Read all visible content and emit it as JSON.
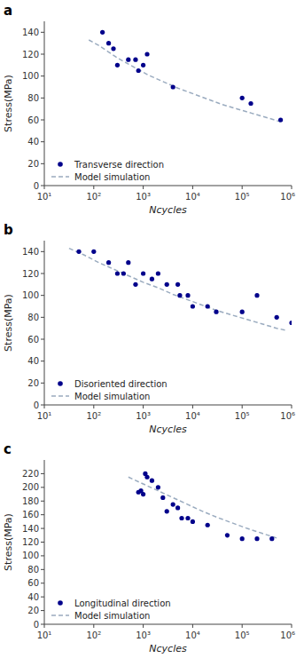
{
  "chart_data": [
    {
      "type": "scatter",
      "title": "a",
      "xlabel": "Ncycles",
      "ylabel": "Stress(MPa)",
      "log": "x",
      "grid": false,
      "legend": "lower left",
      "xlim": [
        10,
        1000000
      ],
      "xticks": [
        {
          "value": 10,
          "label": "10¹"
        },
        {
          "value": 100,
          "label": "10²"
        },
        {
          "value": 1000,
          "label": "10³"
        },
        {
          "value": 10000,
          "label": "10⁴"
        },
        {
          "value": 100000,
          "label": "10⁵"
        },
        {
          "value": 1000000,
          "label": "10⁶"
        }
      ],
      "ylim": [
        0,
        150
      ],
      "yticks": [
        0,
        20,
        40,
        60,
        80,
        100,
        120,
        140
      ],
      "series": [
        {
          "name": "Transverse direction",
          "type": "scatter",
          "marker": "circle",
          "color": "#00008B",
          "x": [
            150,
            200,
            250,
            300,
            500,
            700,
            800,
            1000,
            1200,
            4000,
            100000,
            150000,
            600000
          ],
          "values": [
            140,
            130,
            125,
            110,
            115,
            115,
            105,
            110,
            120,
            90,
            80,
            75,
            60
          ]
        },
        {
          "name": "Model simulation",
          "type": "line",
          "line_style": "dashed",
          "color": "#9aabbf",
          "x": [
            79.43282347242815,
            125.89254117941672,
            199.52623149688796,
            316.22776601683796,
            501.18723362727224,
            794.3282347242815,
            1258.9254117941675,
            2511.886431509582,
            5011.872336272725,
            10000,
            19952.62314968883,
            39810.71705534973,
            79432.82347242814,
            158489.3192461114,
            316227.7660168379,
            630957.3444801943
          ],
          "values": [
            133,
            128,
            122,
            116,
            111,
            106,
            101,
            95,
            89,
            84,
            79,
            74,
            70,
            66,
            62,
            58
          ]
        }
      ]
    },
    {
      "type": "scatter",
      "title": "b",
      "xlabel": "Ncycles",
      "ylabel": "Stress(MPa)",
      "log": "x",
      "grid": false,
      "legend": "lower left",
      "xlim": [
        10,
        1000000
      ],
      "xticks": [
        {
          "value": 10,
          "label": "10¹"
        },
        {
          "value": 100,
          "label": "10²"
        },
        {
          "value": 1000,
          "label": "10³"
        },
        {
          "value": 10000,
          "label": "10⁴"
        },
        {
          "value": 100000,
          "label": "10⁵"
        },
        {
          "value": 1000000,
          "label": "10⁶"
        }
      ],
      "ylim": [
        0,
        150
      ],
      "yticks": [
        0,
        20,
        40,
        60,
        80,
        100,
        120,
        140
      ],
      "series": [
        {
          "name": "Disoriented direction",
          "type": "scatter",
          "marker": "circle",
          "color": "#00008B",
          "x": [
            50,
            100,
            200,
            300,
            400,
            500,
            700,
            1000,
            1500,
            2000,
            3000,
            5000,
            5500,
            8000,
            10000,
            20000,
            30000,
            100000,
            200000,
            500000,
            1000000
          ],
          "values": [
            140,
            140,
            130,
            120,
            120,
            130,
            110,
            120,
            115,
            120,
            110,
            110,
            100,
            100,
            90,
            90,
            85,
            85,
            100,
            80,
            75
          ]
        },
        {
          "name": "Model simulation",
          "type": "line",
          "line_style": "dashed",
          "color": "#9aabbf",
          "x": [
            31.622776601683793,
            63.09573444801933,
            125.89254117941672,
            251.18864315095797,
            501.18723362727224,
            1000,
            1995.2623149688789,
            3981.0717055349733,
            7943.282347242814,
            15848.93192461114,
            31622.776601683792,
            63095.7344480193,
            125892.54117941661,
            251188.6431509582,
            501187.2336272725,
            794328.2347242822
          ],
          "values": [
            143,
            137,
            130,
            124,
            118,
            112,
            107,
            101,
            96,
            91,
            86,
            82,
            78,
            74,
            70,
            68
          ]
        }
      ]
    },
    {
      "type": "scatter",
      "title": "c",
      "xlabel": "Ncycles",
      "ylabel": "Stress(MPa)",
      "log": "x",
      "grid": false,
      "legend": "lower left",
      "xlim": [
        10,
        1000000
      ],
      "xticks": [
        {
          "value": 10,
          "label": "10¹"
        },
        {
          "value": 100,
          "label": "10²"
        },
        {
          "value": 1000,
          "label": "10³"
        },
        {
          "value": 10000,
          "label": "10⁴"
        },
        {
          "value": 100000,
          "label": "10⁵"
        },
        {
          "value": 1000000,
          "label": "10⁶"
        }
      ],
      "ylim": [
        0,
        240
      ],
      "yticks": [
        0,
        20,
        40,
        60,
        80,
        100,
        120,
        140,
        160,
        180,
        200,
        220
      ],
      "series": [
        {
          "name": "Longitudinal direction",
          "type": "scatter",
          "marker": "circle",
          "color": "#00008B",
          "x": [
            800,
            900,
            1000,
            1100,
            1200,
            1500,
            2000,
            2500,
            3000,
            4000,
            5000,
            6000,
            8000,
            10000,
            20000,
            50000,
            100000,
            200000,
            400000
          ],
          "values": [
            193,
            195,
            190,
            220,
            215,
            210,
            200,
            185,
            165,
            175,
            170,
            155,
            155,
            150,
            145,
            130,
            125,
            125,
            125
          ]
        },
        {
          "name": "Model simulation",
          "type": "line",
          "line_style": "dashed",
          "color": "#9aabbf",
          "x": [
            501.18723362727224,
            1000,
            1995.2623149688789,
            3981.0717055349733,
            7943.282347242814,
            15848.93192461114,
            31622.776601683792,
            63095.7344480193,
            125892.54117941661,
            251188.6431509582,
            501187.2336272725
          ],
          "values": [
            215,
            205,
            195,
            185,
            175,
            165,
            156,
            148,
            140,
            133,
            126
          ]
        }
      ]
    }
  ]
}
